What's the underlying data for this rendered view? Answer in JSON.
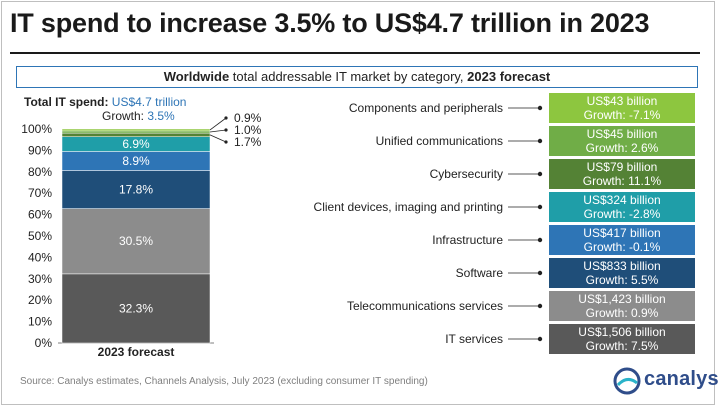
{
  "title": "IT spend to increase 3.5% to US$4.7 trillion in 2023",
  "subtitle": {
    "part1": "Worldwide",
    "part2": " total addressable IT market by category, ",
    "part3": "2023 forecast"
  },
  "total": {
    "label": "Total IT spend: ",
    "value": "US$4.7 trillion",
    "growth_label": "Growth: ",
    "growth_value": "3.5%"
  },
  "source": "Source: Canalys estimates, Channels Analysis, July 2023 (excluding consumer IT spending)",
  "logo_text": "canalys",
  "chart_data": {
    "type": "bar",
    "stacked": true,
    "categories": [
      "2023 forecast"
    ],
    "ylim": [
      0,
      100
    ],
    "yticks": [
      "0%",
      "10%",
      "20%",
      "30%",
      "40%",
      "50%",
      "60%",
      "70%",
      "80%",
      "90%",
      "100%"
    ],
    "series": [
      {
        "name": "IT services",
        "value": 32.3,
        "label": "32.3%",
        "spend": "US$1,506 billion",
        "growth": "Growth: 7.5%",
        "color": "#595959"
      },
      {
        "name": "Telecommunications services",
        "value": 30.5,
        "label": "30.5%",
        "spend": "US$1,423 billion",
        "growth": "Growth: 0.9%",
        "color": "#8c8c8c"
      },
      {
        "name": "Software",
        "value": 17.8,
        "label": "17.8%",
        "spend": "US$833 billion",
        "growth": "Growth: 5.5%",
        "color": "#1f4e79"
      },
      {
        "name": "Infrastructure",
        "value": 8.9,
        "label": "8.9%",
        "spend": "US$417 billion",
        "growth": "Growth: -0.1%",
        "color": "#2e75b6"
      },
      {
        "name": "Client devices, imaging and printing",
        "value": 6.9,
        "label": "6.9%",
        "spend": "US$324 billion",
        "growth": "Growth: -2.8%",
        "color": "#1f9ea8"
      },
      {
        "name": "Cybersecurity",
        "value": 1.7,
        "label": "1.7%",
        "spend": "US$79 billion",
        "growth": "Growth: 11.1%",
        "color": "#548235"
      },
      {
        "name": "Unified communications",
        "value": 1.0,
        "label": "1.0%",
        "spend": "US$45 billion",
        "growth": "Growth: 2.6%",
        "color": "#70ad47"
      },
      {
        "name": "Components and peripherals",
        "value": 0.9,
        "label": "0.9%",
        "spend": "US$43 billion",
        "growth": "Growth: -7.1%",
        "color": "#8dc63f"
      }
    ]
  }
}
